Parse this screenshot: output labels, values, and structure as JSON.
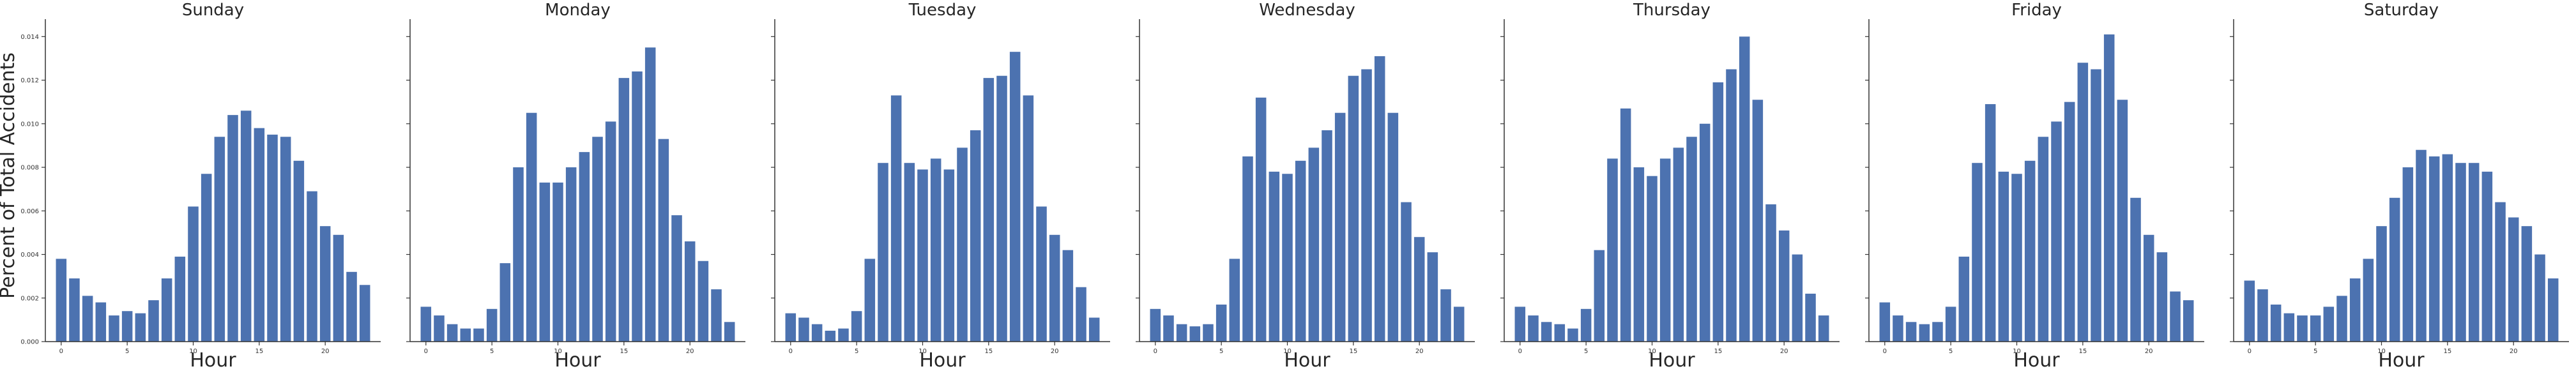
{
  "chart_data": {
    "type": "bar",
    "layout": "facet-row",
    "bar_color": "#4c72b0",
    "axis_color": "#333333",
    "ylabel": "Percent of Total Accidents",
    "xlabel": "Hour",
    "ylim": [
      0,
      0.0148
    ],
    "xlim": [
      -1.2,
      24.2
    ],
    "x_ticks": [
      0,
      5,
      10,
      15,
      20
    ],
    "x_tick_labels": [
      "0",
      "5",
      "10",
      "15",
      "20"
    ],
    "y_ticks": [
      0,
      0.002,
      0.004,
      0.006,
      0.008,
      0.01,
      0.012,
      0.014
    ],
    "y_tick_labels": [
      "0.000",
      "0.002",
      "0.004",
      "0.006",
      "0.008",
      "0.010",
      "0.012",
      "0.014"
    ],
    "grid": false,
    "hours": [
      0,
      1,
      2,
      3,
      4,
      5,
      6,
      7,
      8,
      9,
      10,
      11,
      12,
      13,
      14,
      15,
      16,
      17,
      18,
      19,
      20,
      21,
      22,
      23
    ],
    "panels": [
      {
        "title": "Sunday",
        "values": [
          0.0038,
          0.0029,
          0.0021,
          0.0018,
          0.0012,
          0.0014,
          0.0013,
          0.0019,
          0.0029,
          0.0039,
          0.0062,
          0.0077,
          0.0094,
          0.0104,
          0.0106,
          0.0098,
          0.0095,
          0.0094,
          0.0083,
          0.0069,
          0.0053,
          0.0049,
          0.0032,
          0.0026
        ]
      },
      {
        "title": "Monday",
        "values": [
          0.0016,
          0.0012,
          0.0008,
          0.0006,
          0.0006,
          0.0015,
          0.0036,
          0.008,
          0.0105,
          0.0073,
          0.0073,
          0.008,
          0.0087,
          0.0094,
          0.0101,
          0.0121,
          0.0124,
          0.0135,
          0.0093,
          0.0058,
          0.0046,
          0.0037,
          0.0024,
          0.0009
        ]
      },
      {
        "title": "Tuesday",
        "values": [
          0.0013,
          0.0011,
          0.0008,
          0.0005,
          0.0006,
          0.0014,
          0.0038,
          0.0082,
          0.0113,
          0.0082,
          0.0079,
          0.0084,
          0.0079,
          0.0089,
          0.0097,
          0.0121,
          0.0122,
          0.0133,
          0.0113,
          0.0062,
          0.0049,
          0.0042,
          0.0025,
          0.0011
        ]
      },
      {
        "title": "Wednesday",
        "values": [
          0.0015,
          0.0012,
          0.0008,
          0.0007,
          0.0008,
          0.0017,
          0.0038,
          0.0085,
          0.0112,
          0.0078,
          0.0077,
          0.0083,
          0.0089,
          0.0097,
          0.0105,
          0.0122,
          0.0125,
          0.0131,
          0.0105,
          0.0064,
          0.0048,
          0.0041,
          0.0024,
          0.0016
        ]
      },
      {
        "title": "Thursday",
        "values": [
          0.0016,
          0.0012,
          0.0009,
          0.0008,
          0.0006,
          0.0015,
          0.0042,
          0.0084,
          0.0107,
          0.008,
          0.0076,
          0.0084,
          0.0089,
          0.0094,
          0.01,
          0.0119,
          0.0125,
          0.014,
          0.0111,
          0.0063,
          0.0051,
          0.004,
          0.0022,
          0.0012
        ]
      },
      {
        "title": "Friday",
        "values": [
          0.0018,
          0.0012,
          0.0009,
          0.0008,
          0.0009,
          0.0016,
          0.0039,
          0.0082,
          0.0109,
          0.0078,
          0.0077,
          0.0083,
          0.0094,
          0.0101,
          0.011,
          0.0128,
          0.0125,
          0.0141,
          0.0111,
          0.0066,
          0.0049,
          0.0041,
          0.0023,
          0.0019
        ]
      },
      {
        "title": "Saturday",
        "values": [
          0.0028,
          0.0024,
          0.0017,
          0.0013,
          0.0012,
          0.0012,
          0.0016,
          0.0021,
          0.0029,
          0.0038,
          0.0053,
          0.0066,
          0.008,
          0.0088,
          0.0085,
          0.0086,
          0.0082,
          0.0082,
          0.0078,
          0.0064,
          0.0057,
          0.0053,
          0.004,
          0.0029
        ]
      }
    ]
  }
}
